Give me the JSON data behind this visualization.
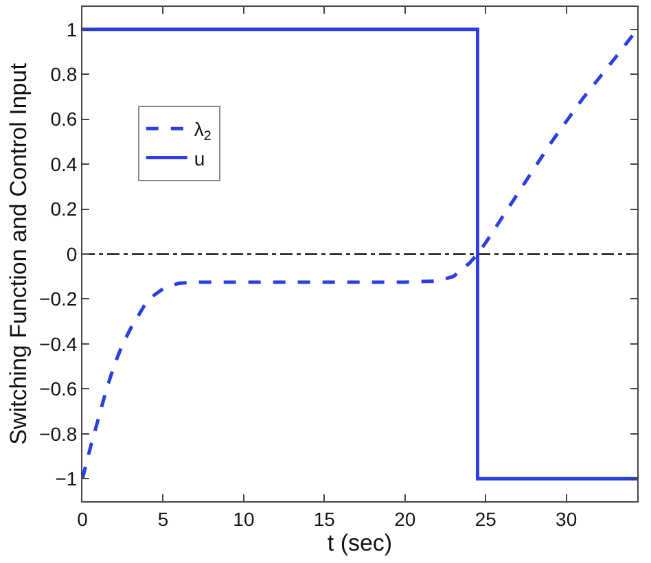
{
  "chart_data": {
    "type": "line",
    "xlabel": "t (sec)",
    "ylabel": "Switching Function and Control Input",
    "xlim": [
      0,
      34.4
    ],
    "xticks": [
      0,
      5,
      10,
      15,
      20,
      25,
      30
    ],
    "ylim": [
      -1.1,
      1.1
    ],
    "yticks": [
      -1,
      -0.8,
      -0.6,
      -0.4,
      -0.2,
      0,
      0.2,
      0.4,
      0.6,
      0.8,
      1
    ],
    "grid": false,
    "legend": "top left",
    "marker": "none",
    "ref_lines": [
      {
        "axis": "y",
        "value": 0,
        "color": "#000000",
        "line_style": "dashdot"
      }
    ],
    "series": [
      {
        "name": "λ$_{2}$",
        "color": "#2b3fe0",
        "line_style": "dashed",
        "x": [
          0,
          0.5,
          1,
          1.5,
          2,
          2.5,
          3,
          3.5,
          4,
          4.5,
          5,
          5.5,
          6,
          7,
          10,
          15,
          20,
          22,
          23,
          23.5,
          24,
          24.5,
          25,
          26,
          27,
          28,
          29,
          30,
          31,
          32,
          33,
          34.4
        ],
        "values": [
          -1,
          -0.86,
          -0.73,
          -0.6,
          -0.49,
          -0.4,
          -0.33,
          -0.27,
          -0.21,
          -0.18,
          -0.155,
          -0.14,
          -0.13,
          -0.125,
          -0.125,
          -0.125,
          -0.125,
          -0.12,
          -0.1,
          -0.07,
          -0.04,
          0,
          0.05,
          0.16,
          0.27,
          0.38,
          0.49,
          0.59,
          0.69,
          0.78,
          0.87,
          1
        ]
      },
      {
        "name": "u",
        "type": "step",
        "color": "#2b3fe0",
        "line_style": "solid",
        "x": [
          0,
          24.5,
          34.4
        ],
        "values": [
          1,
          -1,
          -1
        ]
      }
    ]
  }
}
